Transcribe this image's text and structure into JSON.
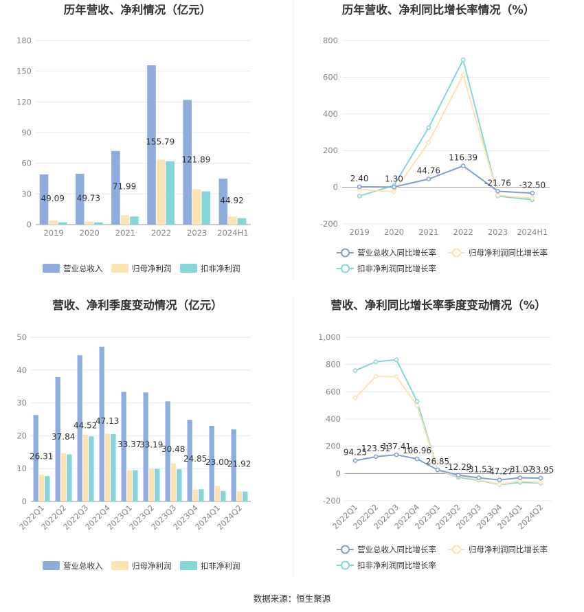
{
  "footer": {
    "source": "数据来源：恒生聚源"
  },
  "colors": {
    "revenue": "#8eacdc",
    "parent_net": "#fde3b3",
    "nonrecurring_net": "#84d6d9"
  },
  "chart_data": [
    {
      "type": "bar",
      "title": "历年营收、净利情况（亿元）",
      "categories": [
        "2019",
        "2020",
        "2021",
        "2022",
        "2023",
        "2024H1"
      ],
      "ylim": [
        0,
        180
      ],
      "yticks": [
        "0",
        "30",
        "60",
        "90",
        "120",
        "150",
        "180"
      ],
      "grid": true,
      "legend_position": "bottom",
      "series": [
        {
          "name": "营业总收入",
          "values": [
            49.09,
            49.73,
            71.99,
            155.79,
            121.89,
            44.92
          ],
          "labeled": true
        },
        {
          "name": "归母净利润",
          "values": [
            3.9,
            3.0,
            9.2,
            63.5,
            34.5,
            7.8
          ],
          "labeled": false
        },
        {
          "name": "扣非净利润",
          "values": [
            2.3,
            2.2,
            7.9,
            62.0,
            32.5,
            6.3
          ],
          "labeled": false
        }
      ],
      "data_labels": [
        "49.09",
        "49.73",
        "71.99",
        "155.79",
        "121.89",
        "44.92"
      ]
    },
    {
      "type": "line",
      "title": "历年营收、净利同比增长率情况（%）",
      "categories": [
        "2019",
        "2020",
        "2021",
        "2022",
        "2023",
        "2024H1"
      ],
      "ylim": [
        -200,
        800
      ],
      "yticks": [
        "-200",
        "0",
        "200",
        "400",
        "600",
        "800"
      ],
      "grid": true,
      "legend_position": "bottom",
      "series": [
        {
          "name": "营业总收入同比增长率",
          "values": [
            2.4,
            1.3,
            44.76,
            116.39,
            -21.76,
            -32.5
          ],
          "labeled": true
        },
        {
          "name": "归母净利润同比增长率",
          "values": [
            -12,
            -25,
            245,
            612,
            -44,
            -60
          ],
          "labeled": false
        },
        {
          "name": "扣非净利润同比增长率",
          "values": [
            -48,
            10,
            325,
            695,
            -48,
            -68
          ],
          "labeled": false
        }
      ],
      "data_labels": [
        "2.40",
        "1.30",
        "44.76",
        "116.39",
        "-21.76",
        "-32.50"
      ]
    },
    {
      "type": "bar",
      "title": "营收、净利季度变动情况（亿元）",
      "categories": [
        "2022Q1",
        "2022Q2",
        "2022Q3",
        "2022Q4",
        "2023Q1",
        "2023Q2",
        "2023Q3",
        "2023Q4",
        "2024Q1",
        "2024Q2"
      ],
      "ylim": [
        0,
        50
      ],
      "yticks": [
        "0",
        "10",
        "20",
        "30",
        "40",
        "50"
      ],
      "grid": true,
      "legend_position": "bottom",
      "series": [
        {
          "name": "营业总收入",
          "values": [
            26.31,
            37.84,
            44.52,
            47.13,
            33.37,
            33.19,
            30.48,
            24.85,
            23.0,
            21.92
          ],
          "labeled": true
        },
        {
          "name": "归母净利润",
          "values": [
            8.2,
            14.7,
            20.3,
            20.6,
            9.5,
            9.9,
            11.6,
            3.6,
            4.7,
            3.1
          ],
          "labeled": false
        },
        {
          "name": "扣非净利润",
          "values": [
            7.7,
            14.3,
            19.8,
            20.5,
            9.5,
            9.9,
            9.8,
            3.7,
            3.2,
            3.0
          ],
          "labeled": false
        }
      ],
      "data_labels": [
        "26.31",
        "37.84",
        "44.52",
        "47.13",
        "33.37",
        "33.19",
        "30.48",
        "24.85",
        "23.00",
        "21.92"
      ]
    },
    {
      "type": "line",
      "title": "营收、净利同比增长率季度变动情况（%）",
      "categories": [
        "2022Q1",
        "2022Q2",
        "2022Q3",
        "2022Q4",
        "2023Q1",
        "2023Q2",
        "2023Q3",
        "2023Q4",
        "2024Q1",
        "2024Q2"
      ],
      "ylim": [
        -200,
        1000
      ],
      "yticks": [
        "-200",
        "0",
        "200",
        "400",
        "600",
        "800",
        "1,000"
      ],
      "grid": true,
      "legend_position": "bottom",
      "series": [
        {
          "name": "营业总收入同比增长率",
          "values": [
            94.25,
            123.51,
            137.41,
            106.96,
            26.85,
            -12.29,
            -31.53,
            -47.27,
            -31.07,
            -33.95
          ],
          "labeled": true
        },
        {
          "name": "归母净利润同比增长率",
          "values": [
            555,
            713,
            710,
            498,
            20,
            -20,
            -45,
            -80,
            -55,
            -65
          ],
          "labeled": false
        },
        {
          "name": "扣非净利润同比增长率",
          "values": [
            755,
            820,
            835,
            530,
            22,
            -28,
            -50,
            -82,
            -65,
            -70
          ],
          "labeled": false
        }
      ],
      "data_labels": [
        "94.25",
        "123.51",
        "137.41",
        "106.96",
        "26.85",
        "-12.29",
        "-31.53",
        "-47.27",
        "-31.07",
        "-33.95"
      ]
    }
  ]
}
